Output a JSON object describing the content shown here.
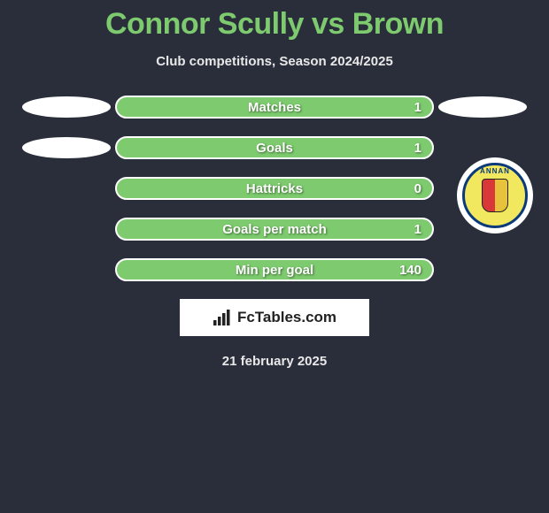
{
  "title": {
    "player1": "Connor Scully",
    "vs": "vs",
    "player2": "Brown"
  },
  "subtitle": "Club competitions, Season 2024/2025",
  "colors": {
    "accent": "#7dcb6e",
    "background": "#2a2e3b",
    "bar_border": "#ffffff",
    "ellipse": "#ffffff",
    "text_shadow": "rgba(0,0,0,0.5)"
  },
  "stats": [
    {
      "label": "Matches",
      "value": "1",
      "left_ellipse": true,
      "right_ellipse": true,
      "right_badge": false
    },
    {
      "label": "Goals",
      "value": "1",
      "left_ellipse": true,
      "right_ellipse": false,
      "right_badge": true
    },
    {
      "label": "Hattricks",
      "value": "0",
      "left_ellipse": false,
      "right_ellipse": false,
      "right_badge": false
    },
    {
      "label": "Goals per match",
      "value": "1",
      "left_ellipse": false,
      "right_ellipse": false,
      "right_badge": false
    },
    {
      "label": "Min per goal",
      "value": "140",
      "left_ellipse": false,
      "right_ellipse": false,
      "right_badge": false
    }
  ],
  "badge": {
    "top_text": "ANNAN",
    "club_name": "Annan Athletic",
    "ring_bg": "#f2e860",
    "ring_border": "#0a3a7a",
    "shield_left": "#d93838",
    "shield_right": "#e8c23a"
  },
  "brand": "FcTables.com",
  "footer_date": "21 february 2025"
}
